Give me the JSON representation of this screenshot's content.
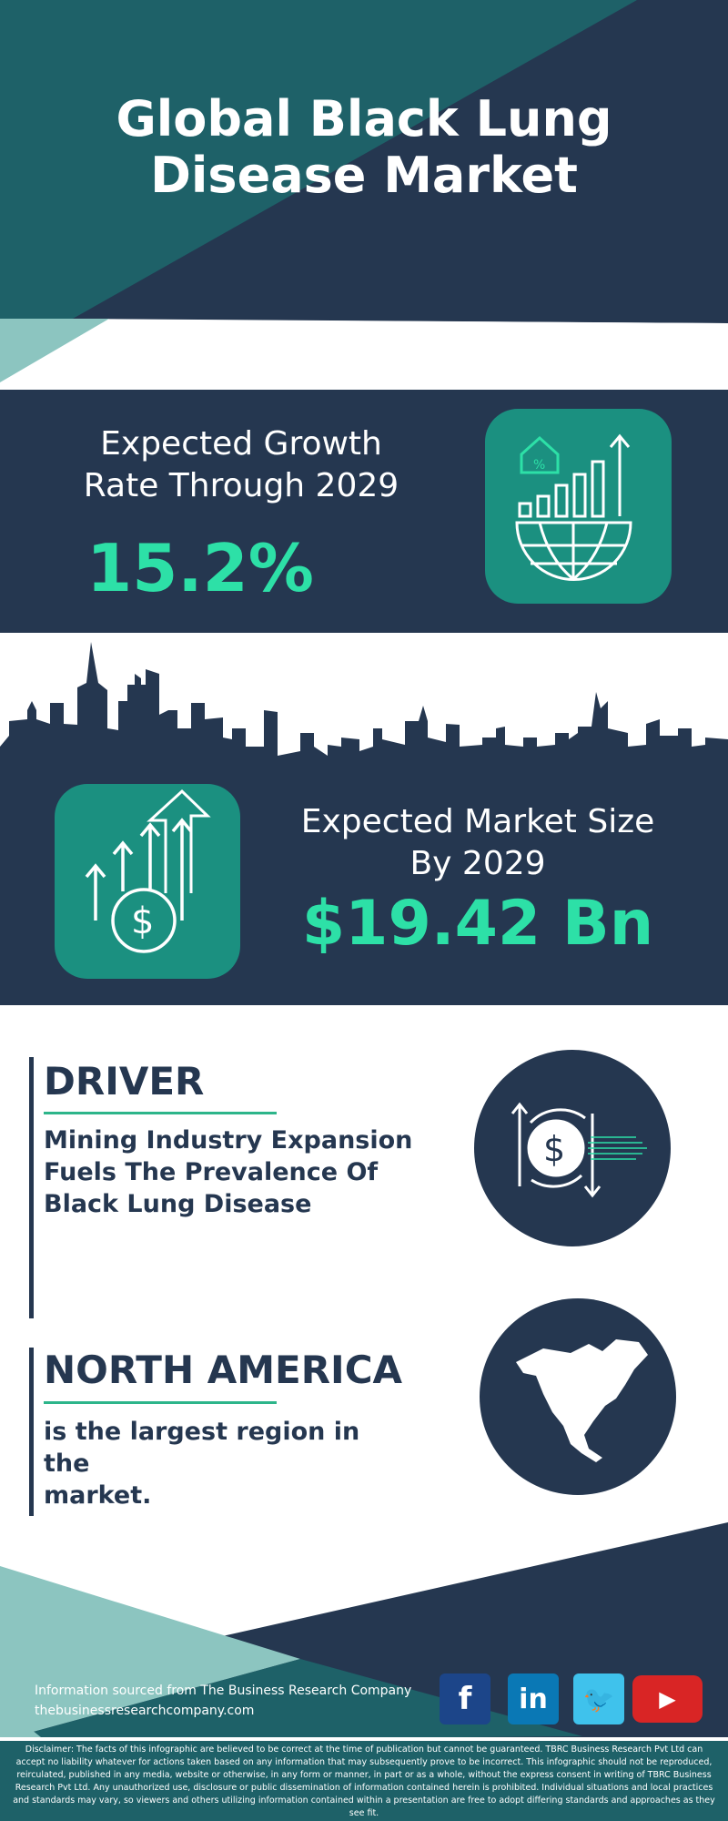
{
  "header": {
    "title_line1": "Global Black Lung",
    "title_line2": "Disease Market"
  },
  "growth": {
    "label_line1": "Expected Growth",
    "label_line2": "Rate Through 2029",
    "value": "15.2%",
    "icon": "globe-growth-chart-icon"
  },
  "market_size": {
    "label_line1": "Expected Market Size",
    "label_line2": "By 2029",
    "value": "$19.42 Bn",
    "icon": "dollar-growth-arrows-icon"
  },
  "driver": {
    "heading": "DRIVER",
    "text_lines": [
      "Mining Industry Expansion",
      "Fuels The Prevalence Of",
      "Black Lung Disease"
    ],
    "icon": "dollar-exchange-icon"
  },
  "region": {
    "heading": "NORTH AMERICA",
    "text_lines": [
      "is the largest region in the",
      "market."
    ],
    "icon": "north-america-map-icon"
  },
  "footer": {
    "source": "Information sourced from The Business Research Company",
    "website": "thebusinessresearchcompany.com",
    "social": [
      "facebook",
      "linkedin",
      "twitter",
      "youtube"
    ],
    "disclaimer": "Disclaimer: The facts of this infographic are believed to be correct at the time of publication but cannot be guaranteed. TBRC Business Research Pvt Ltd can accept no liability whatever for actions taken based on any information that may subsequently prove to be incorrect. This infographic should not be reproduced, reirculated, published in any media, website or otherwise, in any form or manner, in part or as a whole, without the express consent in writing of TBRC Business Research Pvt Ltd. Any unauthorized use, disclosure or public dissemination of information contained herein is prohibited. Individual situations and local practices and standards may vary, so viewers and others utilizing information contained within a presentation are free to adopt differing standards and approaches as they see fit."
  },
  "colors": {
    "teal": "#1e6168",
    "navy": "#253750",
    "accent": "#2de0a7",
    "icon_box": "#1b9080",
    "light_teal": "#8cc5c0"
  }
}
